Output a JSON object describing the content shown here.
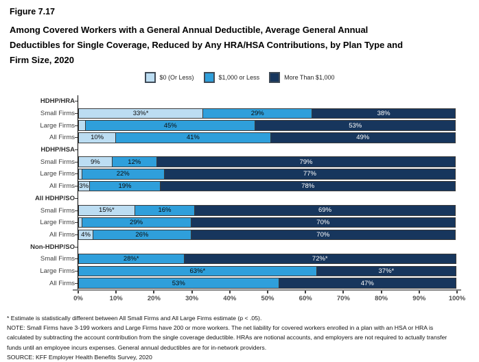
{
  "header": {
    "figure_label": "Figure 7.17",
    "title": "Among Covered Workers with a General Annual Deductible, Average General Annual Deductibles for Single Coverage, Reduced by Any HRA/HSA Contributions, by Plan Type and Firm Size, 2020",
    "title_lines": [
      "Among Covered Workers with a General Annual Deductible, Average General Annual",
      "Deductibles for Single Coverage, Reduced by Any HRA/HSA Contributions, by Plan Type and",
      "Firm Size, 2020"
    ]
  },
  "legend": {
    "position": "top-center",
    "items": [
      {
        "label": "$0 (Or Less)",
        "color": "#BCDDF2"
      },
      {
        "label": "$1,000 or Less",
        "color": "#2F9FDB"
      },
      {
        "label": "More Than $1,000",
        "color": "#17365D"
      }
    ]
  },
  "chart_data": {
    "type": "bar",
    "stacked": true,
    "orientation": "horizontal",
    "unit": "percent",
    "title": "Among Covered Workers with a General Annual Deductible, Average General Annual Deductibles for Single Coverage, Reduced by Any HRA/HSA Contributions, by Plan Type and Firm Size, 2020",
    "xlabel": "",
    "ylabel": "",
    "xlim": [
      0,
      100
    ],
    "x_ticks": [
      "0%",
      "10%",
      "20%",
      "30%",
      "40%",
      "50%",
      "60%",
      "70%",
      "80%",
      "90%",
      "100%"
    ],
    "grid": false,
    "legend_position": "top",
    "series_names": [
      "$0 (Or Less)",
      "$1,000 or Less",
      "More Than $1,000"
    ],
    "series_colors": [
      "#BCDDF2",
      "#2F9FDB",
      "#17365D"
    ],
    "groups": [
      {
        "label": "HDHP/HRA",
        "rows": [
          {
            "label": "Small Firms",
            "values": [
              33,
              29,
              38
            ],
            "labels": [
              "33%*",
              "29%",
              "38%"
            ]
          },
          {
            "label": "Large Firms",
            "values": [
              2,
              45,
              53
            ],
            "labels": [
              "",
              "45%",
              "53%"
            ]
          },
          {
            "label": "All Firms",
            "values": [
              10,
              41,
              49
            ],
            "labels": [
              "10%",
              "41%",
              "49%"
            ]
          }
        ]
      },
      {
        "label": "HDHP/HSA",
        "rows": [
          {
            "label": "Small Firms",
            "values": [
              9,
              12,
              79
            ],
            "labels": [
              "9%",
              "12%",
              "79%"
            ]
          },
          {
            "label": "Large Firms",
            "values": [
              1,
              22,
              77
            ],
            "labels": [
              "",
              "22%",
              "77%"
            ]
          },
          {
            "label": "All Firms",
            "values": [
              3,
              19,
              78
            ],
            "labels": [
              "3%",
              "19%",
              "78%"
            ]
          }
        ]
      },
      {
        "label": "All HDHP/SO",
        "rows": [
          {
            "label": "Small Firms",
            "values": [
              15,
              16,
              69
            ],
            "labels": [
              "15%*",
              "16%",
              "69%"
            ]
          },
          {
            "label": "Large Firms",
            "values": [
              1,
              29,
              70
            ],
            "labels": [
              "",
              "29%",
              "70%"
            ]
          },
          {
            "label": "All Firms",
            "values": [
              4,
              26,
              70
            ],
            "labels": [
              "4%",
              "26%",
              "70%"
            ]
          }
        ]
      },
      {
        "label": "Non-HDHP/SO",
        "rows": [
          {
            "label": "Small Firms",
            "values": [
              0,
              28,
              72
            ],
            "labels": [
              "",
              "28%*",
              "72%*"
            ]
          },
          {
            "label": "Large Firms",
            "values": [
              0,
              63,
              37
            ],
            "labels": [
              "",
              "63%*",
              "37%*"
            ]
          },
          {
            "label": "All Firms",
            "values": [
              0,
              53,
              47
            ],
            "labels": [
              "",
              "53%",
              "47%"
            ]
          }
        ]
      }
    ]
  },
  "notes": {
    "estimate": "* Estimate is statistically different between All Small Firms and All Large Firms estimate (p < .05).",
    "note": "NOTE: Small Firms have 3-199 workers and Large Firms have 200 or more workers. The net liability for covered workers enrolled in a plan with an HSA or HRA is calculated by subtracting the account contribution from the single coverage deductible. HRAs are notional accounts, and employers are not required to actually transfer funds until an employee incurs expenses. General annual deductibles are for in-network providers.",
    "source": "SOURCE: KFF Employer Health Benefits Survey, 2020"
  }
}
